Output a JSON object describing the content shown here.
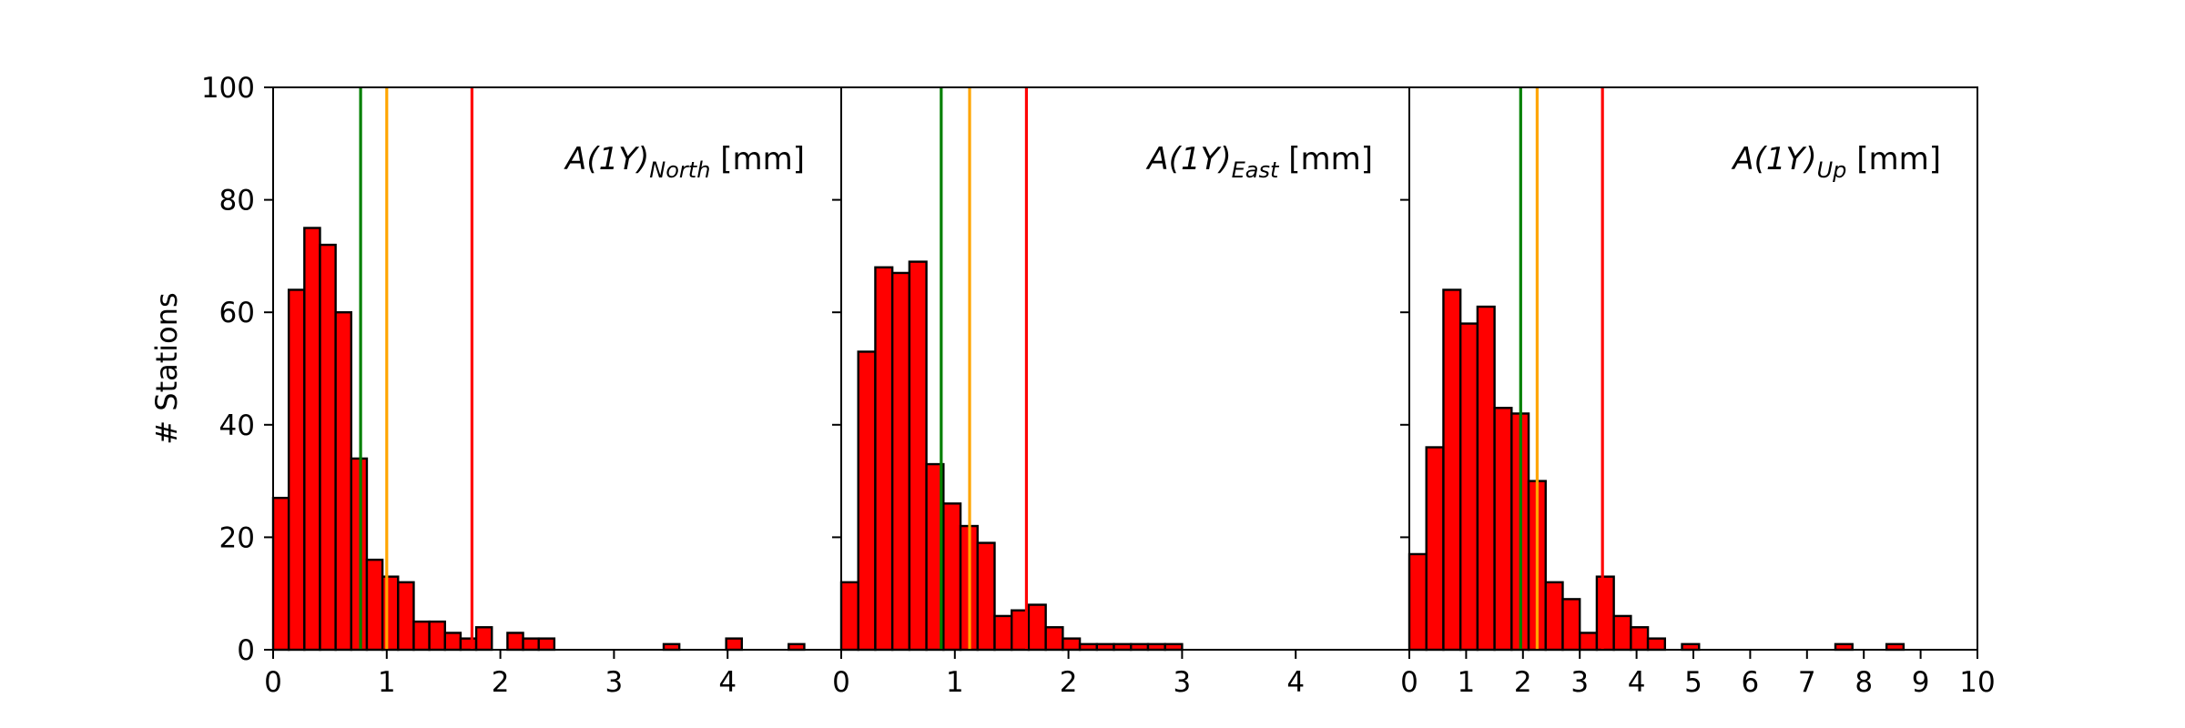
{
  "colors": {
    "bar_fill": "#ff0000",
    "bar_edge": "#000000",
    "line_green": "#008000",
    "line_orange": "#ffa500",
    "line_red": "#ff0000"
  },
  "chart_data": [
    {
      "type": "bar",
      "panel": "north",
      "title_main": "A(1Y)",
      "title_sub": "North",
      "title_unit": " [mm]",
      "ylabel": "# Stations",
      "xlim": [
        0,
        5
      ],
      "ylim": [
        0,
        100
      ],
      "x_ticks": [
        0,
        1,
        2,
        3,
        4
      ],
      "y_ticks": [
        0,
        20,
        40,
        60,
        80,
        100
      ],
      "bin_width": 0.1375,
      "values": [
        27,
        64,
        75,
        72,
        60,
        34,
        16,
        13,
        12,
        5,
        5,
        3,
        2,
        4,
        0,
        3,
        2,
        2,
        0,
        0,
        0,
        0,
        0,
        0,
        0,
        1,
        0,
        0,
        0,
        2,
        0,
        0,
        0,
        1
      ],
      "vlines": [
        {
          "x": 0.77,
          "color": "green"
        },
        {
          "x": 1.0,
          "color": "orange"
        },
        {
          "x": 1.75,
          "color": "red"
        }
      ]
    },
    {
      "type": "bar",
      "panel": "east",
      "title_main": "A(1Y)",
      "title_sub": "East",
      "title_unit": " [mm]",
      "xlim": [
        0,
        5
      ],
      "ylim": [
        0,
        100
      ],
      "x_ticks": [
        0,
        1,
        2,
        3,
        4
      ],
      "bin_width": 0.15,
      "values": [
        12,
        53,
        68,
        67,
        69,
        33,
        26,
        22,
        19,
        6,
        7,
        8,
        4,
        2,
        1,
        1,
        1,
        1,
        1,
        1
      ],
      "vlines": [
        {
          "x": 0.88,
          "color": "green"
        },
        {
          "x": 1.13,
          "color": "orange"
        },
        {
          "x": 1.63,
          "color": "red"
        }
      ]
    },
    {
      "type": "bar",
      "panel": "up",
      "title_main": "A(1Y)",
      "title_sub": "Up",
      "title_unit": " [mm]",
      "xlim": [
        0,
        10
      ],
      "ylim": [
        0,
        100
      ],
      "x_ticks": [
        0,
        1,
        2,
        3,
        4,
        5,
        6,
        7,
        8,
        9,
        10
      ],
      "bin_width": 0.3,
      "values": [
        17,
        36,
        64,
        58,
        61,
        43,
        42,
        30,
        12,
        9,
        3,
        13,
        6,
        4,
        2,
        0,
        1,
        0,
        0,
        0,
        0,
        0,
        0,
        0,
        0,
        1,
        0,
        0,
        1
      ],
      "vlines": [
        {
          "x": 1.96,
          "color": "green"
        },
        {
          "x": 2.25,
          "color": "orange"
        },
        {
          "x": 3.4,
          "color": "red"
        }
      ]
    }
  ]
}
